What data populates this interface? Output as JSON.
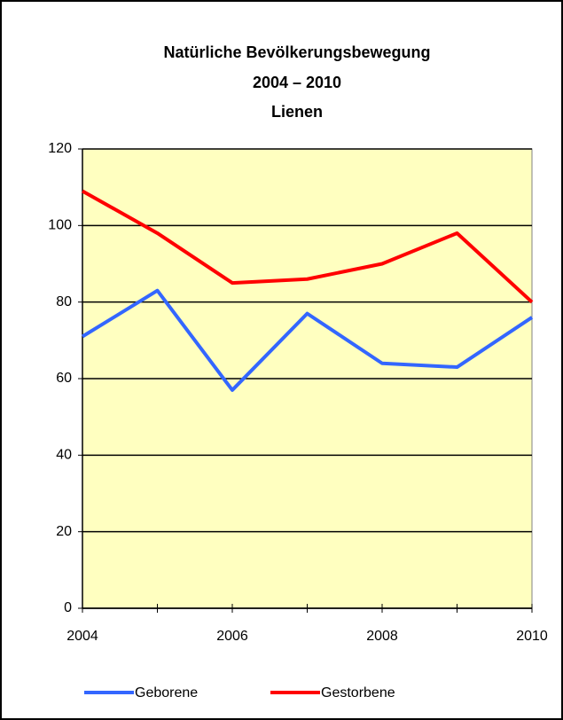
{
  "chart_data": {
    "type": "line",
    "title": "Natürliche Bevölkerungsbewegung",
    "subtitle": [
      "2004 – 2010",
      "Lienen"
    ],
    "x": [
      2004,
      2005,
      2006,
      2007,
      2008,
      2009,
      2010
    ],
    "xlim": [
      2004,
      2010
    ],
    "xticks": [
      2004,
      2006,
      2008,
      2010
    ],
    "ylim": [
      0,
      120
    ],
    "yticks": [
      0,
      20,
      40,
      60,
      80,
      100,
      120
    ],
    "grid": true,
    "legend": "bottom",
    "series": [
      {
        "name": "Geborene",
        "color": "#3366ff",
        "values": [
          71,
          83,
          57,
          77,
          64,
          63,
          76
        ]
      },
      {
        "name": "Gestorbene",
        "color": "#ff0000",
        "values": [
          109,
          98,
          85,
          86,
          90,
          98,
          80
        ]
      }
    ]
  }
}
